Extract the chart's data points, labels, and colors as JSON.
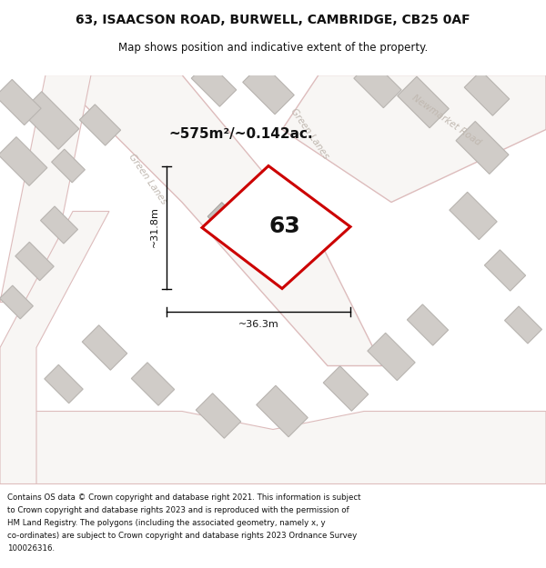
{
  "title": "63, ISAACSON ROAD, BURWELL, CAMBRIDGE, CB25 0AF",
  "subtitle": "Map shows position and indicative extent of the property.",
  "area_text": "~575m²/~0.142ac.",
  "dim_width": "~36.3m",
  "dim_height": "~31.8m",
  "plot_number": "63",
  "copyright_text": "Contains OS data © Crown copyright and database right 2021. This information is subject to Crown copyright and database rights 2023 and is reproduced with the permission of HM Land Registry. The polygons (including the associated geometry, namely x, y co-ordinates) are subject to Crown copyright and database rights 2023 Ordnance Survey 100026316.",
  "bg_color": "#eeecea",
  "plot_stroke": "#cc0000",
  "plot_fill": "#ffffff",
  "bld_fill": "#d0ccc8",
  "bld_edge": "#b8b4b0",
  "road_fill": "#f8f6f4",
  "road_edge": "#ddbcbc",
  "title_color": "#111111",
  "road_label_color": "#c0b8b0",
  "footer_bg": "#ffffff"
}
